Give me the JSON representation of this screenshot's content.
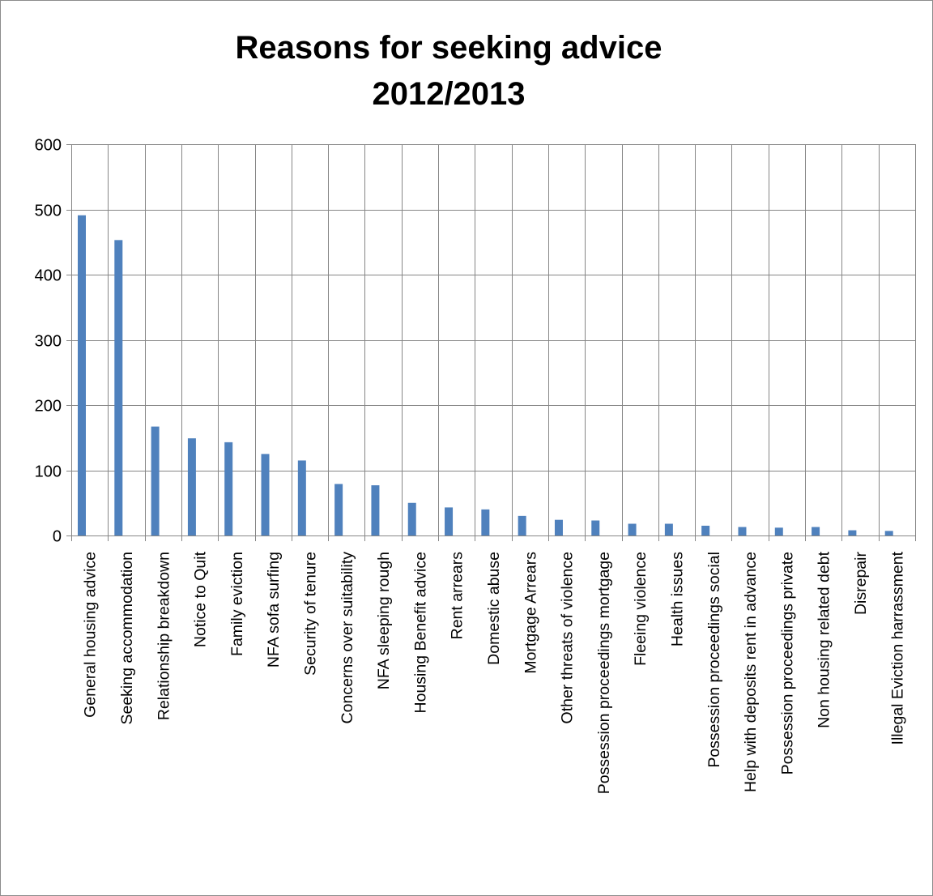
{
  "chart_data": {
    "type": "bar",
    "title": "Reasons for seeking advice",
    "subtitle": "2012/2013",
    "ylim": [
      0,
      600
    ],
    "ytick_values": [
      0,
      100,
      200,
      300,
      400,
      500,
      600
    ],
    "ytick_labels": [
      "0",
      "100",
      "200",
      "300",
      "400",
      "500",
      "600"
    ],
    "grid": true,
    "bar_color": "#4f81bd",
    "grid_color": "#868686",
    "categories": [
      "General housing advice",
      "Seeking accommodation",
      "Relationship breakdown",
      "Notice to Quit",
      "Family eviction",
      "NFA sofa surfing",
      "Security of tenure",
      "Concerns over suitability",
      "NFA sleeping rough",
      "Housing Benefit advice",
      "Rent arrears",
      "Domestic abuse",
      "Mortgage Arrears",
      "Other threats of violence",
      "Possession proceedings mortgage",
      "Fleeing violence",
      "Health issues",
      "Possession proceedings social",
      "Help with deposits rent in advance",
      "Possession proceedings private",
      "Non housing related debt",
      "Disrepair",
      "Illegal Eviction harrassment"
    ],
    "values": [
      491,
      453,
      167,
      149,
      143,
      125,
      115,
      79,
      77,
      50,
      43,
      40,
      30,
      24,
      23,
      18,
      18,
      15,
      13,
      12,
      13,
      8,
      7
    ]
  }
}
